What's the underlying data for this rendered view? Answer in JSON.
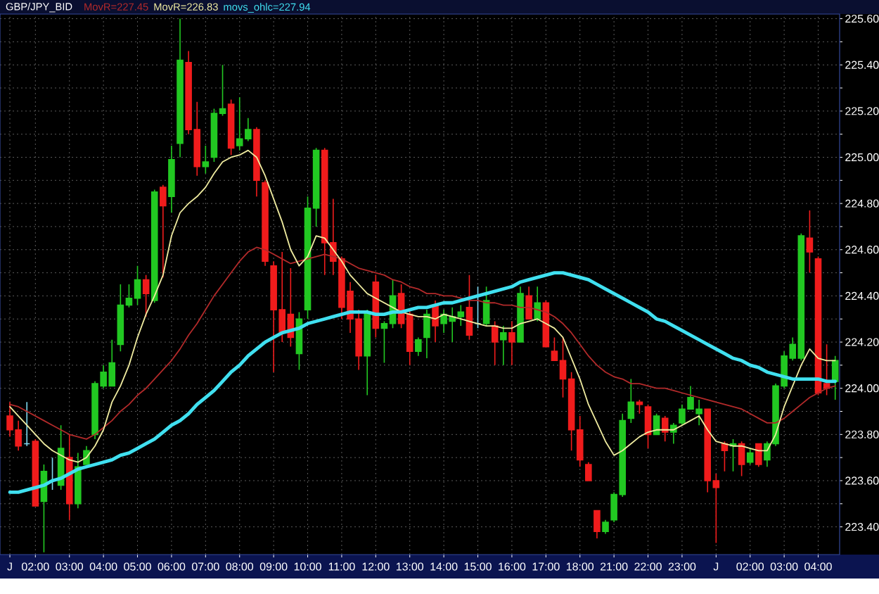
{
  "chart_data": {
    "type": "candlestick",
    "title": "GBP/JPY_BID",
    "categories": [
      "J",
      null,
      null,
      "02:00",
      null,
      null,
      null,
      "03:00",
      null,
      null,
      null,
      "04:00",
      null,
      null,
      null,
      "05:00",
      null,
      null,
      null,
      "06:00",
      null,
      null,
      null,
      "07:00",
      null,
      null,
      null,
      "08:00",
      null,
      null,
      null,
      "09:00",
      null,
      null,
      null,
      "10:00",
      null,
      null,
      null,
      "11:00",
      null,
      null,
      null,
      "12:00",
      null,
      null,
      null,
      "13:00",
      null,
      null,
      null,
      "14:00",
      null,
      null,
      null,
      "15:00",
      null,
      null,
      null,
      "16:00",
      null,
      null,
      null,
      "17:00",
      null,
      null,
      null,
      "18:00",
      null,
      null,
      null,
      "21:00",
      null,
      null,
      null,
      "22:00",
      null,
      null,
      null,
      "23:00",
      null,
      null,
      null,
      "J",
      null,
      null,
      null,
      "02:00",
      null,
      null,
      null,
      "03:00",
      null,
      null,
      null,
      "04:00",
      null,
      null
    ],
    "ohlc": [
      [
        223.88,
        223.94,
        223.79,
        223.82
      ],
      [
        223.82,
        223.86,
        223.73,
        223.75
      ],
      [
        223.76,
        223.94,
        223.75,
        223.76
      ],
      [
        223.77,
        223.78,
        223.49,
        223.49
      ],
      [
        223.51,
        223.67,
        223.29,
        223.64
      ],
      [
        223.6,
        223.7,
        223.56,
        223.6
      ],
      [
        223.58,
        223.84,
        223.56,
        223.74
      ],
      [
        223.7,
        223.8,
        223.43,
        223.5
      ],
      [
        223.5,
        223.72,
        223.48,
        223.66
      ],
      [
        223.67,
        223.75,
        223.67,
        223.73
      ],
      [
        223.8,
        224.03,
        223.78,
        224.02
      ],
      [
        224.01,
        224.1,
        224.0,
        224.07
      ],
      [
        224.01,
        224.21,
        224.01,
        224.11
      ],
      [
        224.19,
        224.45,
        224.16,
        224.36
      ],
      [
        224.36,
        224.45,
        224.35,
        224.39
      ],
      [
        224.39,
        224.53,
        224.36,
        224.47
      ],
      [
        224.47,
        224.49,
        224.31,
        224.41
      ],
      [
        224.38,
        224.86,
        224.37,
        224.85
      ],
      [
        224.87,
        224.88,
        224.48,
        224.79
      ],
      [
        224.83,
        225.05,
        224.76,
        224.99
      ],
      [
        225.06,
        225.6,
        225.0,
        225.42
      ],
      [
        225.41,
        225.46,
        225.1,
        225.12
      ],
      [
        225.12,
        225.24,
        224.92,
        224.96
      ],
      [
        224.96,
        225.05,
        224.93,
        224.98
      ],
      [
        225.0,
        225.21,
        224.98,
        225.19
      ],
      [
        225.19,
        225.4,
        225.18,
        225.21
      ],
      [
        225.23,
        225.25,
        225.01,
        225.04
      ],
      [
        225.05,
        225.26,
        225.03,
        225.08
      ],
      [
        225.08,
        225.17,
        225.07,
        225.12
      ],
      [
        225.12,
        225.13,
        224.83,
        224.9
      ],
      [
        224.89,
        224.9,
        224.53,
        224.55
      ],
      [
        224.53,
        224.55,
        224.07,
        224.34
      ],
      [
        224.34,
        224.59,
        224.2,
        224.24
      ],
      [
        224.32,
        224.52,
        224.18,
        224.22
      ],
      [
        224.15,
        224.33,
        224.08,
        224.3
      ],
      [
        224.34,
        224.83,
        224.3,
        224.78
      ],
      [
        224.78,
        225.04,
        224.7,
        225.03
      ],
      [
        225.03,
        225.04,
        224.49,
        224.63
      ],
      [
        224.63,
        224.82,
        224.49,
        224.55
      ],
      [
        224.56,
        224.57,
        224.3,
        224.35
      ],
      [
        224.42,
        224.46,
        224.24,
        224.3
      ],
      [
        224.3,
        224.34,
        224.08,
        224.14
      ],
      [
        224.14,
        224.34,
        223.97,
        224.33
      ],
      [
        224.46,
        224.49,
        224.22,
        224.26
      ],
      [
        224.26,
        224.29,
        224.11,
        224.28
      ],
      [
        224.28,
        224.47,
        224.26,
        224.4
      ],
      [
        224.41,
        224.45,
        224.26,
        224.28
      ],
      [
        224.32,
        224.34,
        224.1,
        224.16
      ],
      [
        224.16,
        224.22,
        224.14,
        224.21
      ],
      [
        224.22,
        224.34,
        224.13,
        224.32
      ],
      [
        224.36,
        224.38,
        224.2,
        224.27
      ],
      [
        224.28,
        224.34,
        224.24,
        224.32
      ],
      [
        224.29,
        224.35,
        224.2,
        224.31
      ],
      [
        224.31,
        224.36,
        224.27,
        224.33
      ],
      [
        224.35,
        224.49,
        224.21,
        224.23
      ],
      [
        224.28,
        224.44,
        224.26,
        224.28
      ],
      [
        224.28,
        224.44,
        224.27,
        224.38
      ],
      [
        224.27,
        224.29,
        224.1,
        224.2
      ],
      [
        224.21,
        224.27,
        224.1,
        224.24
      ],
      [
        224.24,
        224.29,
        224.1,
        224.2
      ],
      [
        224.2,
        224.44,
        224.2,
        224.41
      ],
      [
        224.4,
        224.44,
        224.3,
        224.3
      ],
      [
        224.3,
        224.44,
        224.29,
        224.37
      ],
      [
        224.37,
        224.38,
        224.18,
        224.18
      ],
      [
        224.16,
        224.22,
        224.12,
        224.12
      ],
      [
        224.12,
        224.22,
        223.96,
        224.04
      ],
      [
        224.04,
        224.07,
        223.73,
        223.82
      ],
      [
        223.82,
        223.88,
        223.66,
        223.69
      ],
      [
        223.67,
        223.68,
        223.6,
        223.6
      ],
      [
        223.47,
        223.47,
        223.35,
        223.38
      ],
      [
        223.38,
        223.43,
        223.37,
        223.42
      ],
      [
        223.43,
        223.55,
        223.42,
        223.54
      ],
      [
        223.54,
        223.89,
        223.53,
        223.86
      ],
      [
        223.87,
        224.04,
        223.85,
        223.94
      ],
      [
        223.94,
        223.95,
        223.89,
        223.93
      ],
      [
        223.92,
        223.93,
        223.74,
        223.8
      ],
      [
        223.8,
        223.89,
        223.8,
        223.88
      ],
      [
        223.87,
        223.88,
        223.77,
        223.81
      ],
      [
        223.81,
        223.85,
        223.76,
        223.84
      ],
      [
        223.85,
        223.93,
        223.84,
        223.91
      ],
      [
        223.91,
        224.01,
        223.91,
        223.96
      ],
      [
        223.89,
        223.95,
        223.84,
        223.91
      ],
      [
        223.91,
        223.91,
        223.55,
        223.6
      ],
      [
        223.6,
        223.63,
        223.33,
        223.57
      ],
      [
        223.76,
        223.77,
        223.64,
        223.73
      ],
      [
        223.75,
        223.78,
        223.64,
        223.76
      ],
      [
        223.76,
        223.77,
        223.62,
        223.67
      ],
      [
        223.68,
        223.74,
        223.67,
        223.72
      ],
      [
        223.76,
        223.76,
        223.66,
        223.67
      ],
      [
        223.69,
        223.77,
        223.66,
        223.76
      ],
      [
        223.76,
        224.02,
        223.75,
        224.01
      ],
      [
        224.01,
        224.16,
        224.0,
        224.14
      ],
      [
        224.13,
        224.22,
        224.12,
        224.19
      ],
      [
        224.13,
        224.67,
        224.12,
        224.66
      ],
      [
        224.65,
        224.77,
        224.5,
        224.59
      ],
      [
        224.56,
        224.57,
        223.97,
        223.98
      ],
      [
        224.02,
        224.19,
        223.97,
        224.0
      ],
      [
        224.03,
        224.14,
        223.95,
        224.12
      ]
    ],
    "colors": [
      "#f01c1c",
      "#f01c1c",
      "#7fd8f0",
      "#f01c1c",
      "#22c822",
      "#7fd8f0",
      "#22c822",
      "#f01c1c",
      "#22c822",
      "#22c822",
      "#22c822",
      "#22c822",
      "#22c822",
      "#22c822",
      "#22c822",
      "#22c822",
      "#f01c1c",
      "#22c822",
      "#f01c1c",
      "#22c822",
      "#22c822",
      "#f01c1c",
      "#f01c1c",
      "#22c822",
      "#22c822",
      "#22c822",
      "#f01c1c",
      "#22c822",
      "#22c822",
      "#f01c1c",
      "#f01c1c",
      "#f01c1c",
      "#f01c1c",
      "#f01c1c",
      "#22c822",
      "#22c822",
      "#22c822",
      "#f01c1c",
      "#f01c1c",
      "#f01c1c",
      "#f01c1c",
      "#f01c1c",
      "#22c822",
      "#f01c1c",
      "#22c822",
      "#22c822",
      "#f01c1c",
      "#f01c1c",
      "#22c822",
      "#22c822",
      "#f01c1c",
      "#22c822",
      "#22c822",
      "#22c822",
      "#f01c1c",
      "#7fd8f0",
      "#22c822",
      "#f01c1c",
      "#22c822",
      "#f01c1c",
      "#22c822",
      "#f01c1c",
      "#22c822",
      "#f01c1c",
      "#f01c1c",
      "#f01c1c",
      "#f01c1c",
      "#f01c1c",
      "#f01c1c",
      "#f01c1c",
      "#22c822",
      "#22c822",
      "#22c822",
      "#22c822",
      "#f01c1c",
      "#f01c1c",
      "#22c822",
      "#f01c1c",
      "#22c822",
      "#22c822",
      "#22c822",
      "#22c822",
      "#f01c1c",
      "#f01c1c",
      "#f01c1c",
      "#22c822",
      "#f01c1c",
      "#22c822",
      "#f01c1c",
      "#22c822",
      "#22c822",
      "#22c822",
      "#22c822",
      "#22c822",
      "#f01c1c",
      "#f01c1c",
      "#f01c1c",
      "#22c822"
    ],
    "series": [
      {
        "type": "line",
        "name": "MovR=227.45",
        "color": "#b22a2a",
        "values": [
          223.93,
          223.92,
          223.9,
          223.88,
          223.86,
          223.84,
          223.82,
          223.8,
          223.79,
          223.78,
          223.8,
          223.83,
          223.86,
          223.9,
          223.93,
          223.97,
          224.0,
          224.04,
          224.08,
          224.12,
          224.17,
          224.23,
          224.28,
          224.34,
          224.4,
          224.45,
          224.5,
          224.55,
          224.59,
          224.61,
          224.6,
          224.58,
          224.56,
          224.54,
          224.55,
          224.56,
          224.57,
          224.58,
          224.57,
          224.56,
          224.54,
          224.52,
          224.51,
          224.5,
          224.49,
          224.47,
          224.46,
          224.44,
          224.43,
          224.41,
          224.41,
          224.4,
          224.4,
          224.39,
          224.38,
          224.38,
          224.37,
          224.37,
          224.36,
          224.36,
          224.35,
          224.35,
          224.34,
          224.33,
          224.31,
          224.28,
          224.24,
          224.19,
          224.14,
          224.1,
          224.07,
          224.05,
          224.04,
          224.02,
          224.02,
          224.01,
          224.0,
          224.0,
          223.99,
          223.98,
          223.97,
          223.96,
          223.95,
          223.94,
          223.93,
          223.92,
          223.91,
          223.89,
          223.87,
          223.85,
          223.85,
          223.87,
          223.9,
          223.93,
          223.96,
          223.98,
          224.0,
          224.01
        ]
      },
      {
        "type": "line",
        "name": "MovR=226.83",
        "color": "#f0eca0",
        "values": [
          223.92,
          223.88,
          223.84,
          223.8,
          223.76,
          223.73,
          223.71,
          223.69,
          223.68,
          223.7,
          223.75,
          223.82,
          223.94,
          224.01,
          224.1,
          224.22,
          224.32,
          224.4,
          224.49,
          224.66,
          224.76,
          224.8,
          224.83,
          224.87,
          224.93,
          224.98,
          225.0,
          225.01,
          225.03,
          225.0,
          224.92,
          224.82,
          224.72,
          224.6,
          224.53,
          224.57,
          224.66,
          224.65,
          224.6,
          224.55,
          224.49,
          224.45,
          224.41,
          224.39,
          224.37,
          224.35,
          224.33,
          224.32,
          224.31,
          224.31,
          224.3,
          224.32,
          224.31,
          224.3,
          224.29,
          224.28,
          224.27,
          224.27,
          224.26,
          224.26,
          224.28,
          224.29,
          224.3,
          224.28,
          224.26,
          224.22,
          224.13,
          224.04,
          223.93,
          223.85,
          223.77,
          223.71,
          223.73,
          223.76,
          223.79,
          223.81,
          223.82,
          223.82,
          223.82,
          223.84,
          223.86,
          223.88,
          223.82,
          223.77,
          223.76,
          223.75,
          223.75,
          223.74,
          223.73,
          223.73,
          223.8,
          223.92,
          224.01,
          224.1,
          224.17,
          224.13,
          224.12,
          224.12
        ]
      },
      {
        "type": "line",
        "name": "movs_ohlc=227.94",
        "color": "#40e0f0",
        "values": [
          223.55,
          223.55,
          223.56,
          223.57,
          223.58,
          223.6,
          223.61,
          223.63,
          223.65,
          223.66,
          223.67,
          223.68,
          223.69,
          223.71,
          223.72,
          223.74,
          223.76,
          223.78,
          223.81,
          223.84,
          223.86,
          223.89,
          223.93,
          223.96,
          223.99,
          224.03,
          224.07,
          224.1,
          224.14,
          224.17,
          224.2,
          224.22,
          224.24,
          224.25,
          224.26,
          224.28,
          224.29,
          224.3,
          224.31,
          224.32,
          224.33,
          224.33,
          224.33,
          224.32,
          224.32,
          224.33,
          224.33,
          224.34,
          224.35,
          224.35,
          224.36,
          224.37,
          224.37,
          224.38,
          224.39,
          224.4,
          224.41,
          224.42,
          224.43,
          224.44,
          224.46,
          224.47,
          224.48,
          224.49,
          224.5,
          224.5,
          224.49,
          224.48,
          224.47,
          224.45,
          224.43,
          224.41,
          224.39,
          224.37,
          224.35,
          224.33,
          224.3,
          224.29,
          224.27,
          224.25,
          224.23,
          224.21,
          224.19,
          224.17,
          224.15,
          224.13,
          224.12,
          224.1,
          224.09,
          224.07,
          224.06,
          224.05,
          224.04,
          224.04,
          224.04,
          224.04,
          224.03,
          224.03
        ]
      }
    ],
    "ylim": [
      223.28,
      225.62
    ],
    "yticks": [
      {
        "value": 223.4,
        "label": "223.40"
      },
      {
        "value": 223.5,
        "label": null
      },
      {
        "value": 223.6,
        "label": "223.60"
      },
      {
        "value": 223.7,
        "label": null
      },
      {
        "value": 223.8,
        "label": "223.80"
      },
      {
        "value": 223.9,
        "label": null
      },
      {
        "value": 224.0,
        "label": "224.00"
      },
      {
        "value": 224.1,
        "label": null
      },
      {
        "value": 224.2,
        "label": "224.20"
      },
      {
        "value": 224.3,
        "label": null
      },
      {
        "value": 224.4,
        "label": "224.40"
      },
      {
        "value": 224.5,
        "label": null
      },
      {
        "value": 224.6,
        "label": "224.60"
      },
      {
        "value": 224.7,
        "label": null
      },
      {
        "value": 224.8,
        "label": "224.80"
      },
      {
        "value": 224.9,
        "label": null
      },
      {
        "value": 225.0,
        "label": "225.00"
      },
      {
        "value": 225.1,
        "label": null
      },
      {
        "value": 225.2,
        "label": "225.20"
      },
      {
        "value": 225.3,
        "label": null
      },
      {
        "value": 225.4,
        "label": "225.40"
      },
      {
        "value": 225.5,
        "label": null
      },
      {
        "value": 225.6,
        "label": "225.60"
      }
    ],
    "grid": true,
    "legend": "top left"
  }
}
